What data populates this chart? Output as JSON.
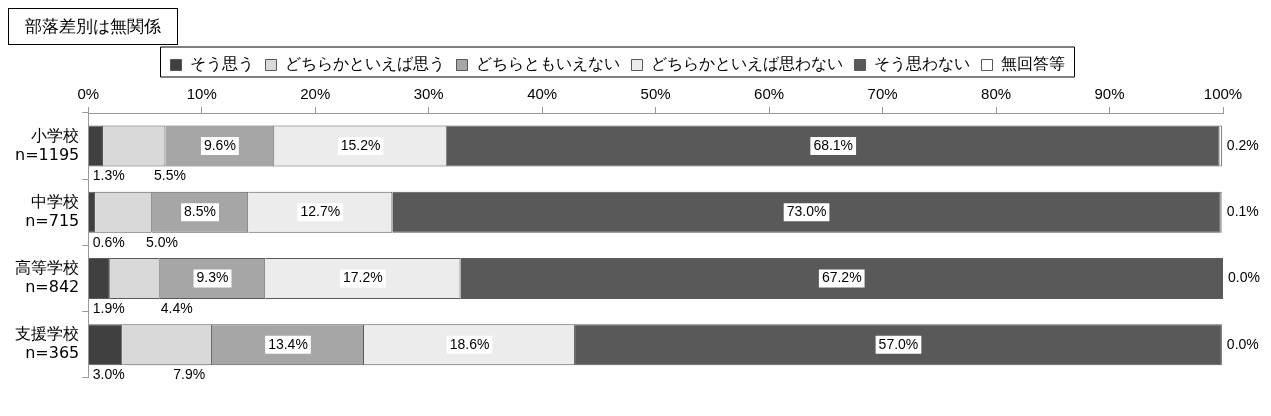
{
  "chart_data": {
    "type": "bar",
    "title": "部落差別は無関係",
    "orientation": "horizontal",
    "stacked": true,
    "legend": "top",
    "grid": false,
    "categories": [
      "小学校\nn=1195",
      "中学校\nn=715",
      "高等学校\nn=842",
      "支援学校\nn=365"
    ],
    "xlim": [
      0,
      100
    ],
    "xticks": [
      {
        "value": 0,
        "label": "0%"
      },
      {
        "value": 10,
        "label": "10%"
      },
      {
        "value": 20,
        "label": "20%"
      },
      {
        "value": 30,
        "label": "30%"
      },
      {
        "value": 40,
        "label": "40%"
      },
      {
        "value": 50,
        "label": "50%"
      },
      {
        "value": 60,
        "label": "60%"
      },
      {
        "value": 70,
        "label": "70%"
      },
      {
        "value": 80,
        "label": "80%"
      },
      {
        "value": 90,
        "label": "90%"
      },
      {
        "value": 100,
        "label": "100%"
      }
    ],
    "series": [
      {
        "name": "そう思う",
        "color": "#404040",
        "values": [
          1.3,
          0.6,
          1.9,
          3.0
        ],
        "value_labels": [
          "1.3%",
          "0.6%",
          "1.9%",
          "3.0%"
        ]
      },
      {
        "name": "どちらかといえば思う",
        "color": "#d9d9d9",
        "values": [
          5.5,
          5.0,
          4.4,
          7.9
        ],
        "value_labels": [
          "5.5%",
          "5.0%",
          "4.4%",
          "7.9%"
        ]
      },
      {
        "name": "どちらともいえない",
        "color": "#a6a6a6",
        "values": [
          9.6,
          8.5,
          9.3,
          13.4
        ],
        "value_labels": [
          "9.6%",
          "8.5%",
          "9.3%",
          "13.4%"
        ]
      },
      {
        "name": "どちらかといえば思わない",
        "color": "#ececec",
        "values": [
          15.2,
          12.7,
          17.2,
          18.6
        ],
        "value_labels": [
          "15.2%",
          "12.7%",
          "17.2%",
          "18.6%"
        ]
      },
      {
        "name": "そう思わない",
        "color": "#595959",
        "values": [
          68.1,
          73.0,
          67.2,
          57.0
        ],
        "value_labels": [
          "68.1%",
          "73.0%",
          "67.2%",
          "57.0%"
        ]
      },
      {
        "name": "無回答等",
        "color": "#ffffff",
        "values": [
          0.2,
          0.1,
          0.0,
          0.0
        ],
        "value_labels": [
          "0.2%",
          "0.1%",
          "0.0%",
          "0.0%"
        ]
      }
    ]
  }
}
